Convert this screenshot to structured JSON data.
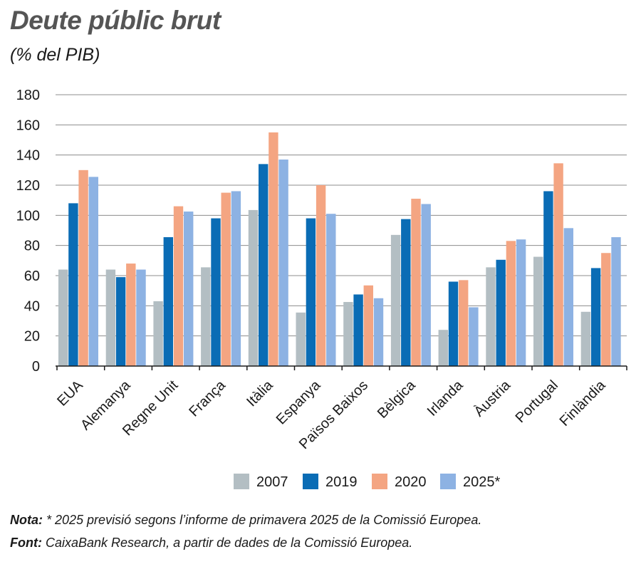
{
  "header": {
    "title": "Deute públic brut",
    "subtitle": "(% del PIB)"
  },
  "chart_data": {
    "type": "bar",
    "title": "Deute públic brut",
    "subtitle": "(% del PIB)",
    "xlabel": "",
    "ylabel": "",
    "ylim": [
      0,
      180
    ],
    "yticks": [
      0,
      20,
      40,
      60,
      80,
      100,
      120,
      140,
      160,
      180
    ],
    "grid": true,
    "legend_position": "bottom",
    "categories": [
      "EUA",
      "Alemanya",
      "Regne Unit",
      "França",
      "Itàlia",
      "Espanya",
      "Països Baixos",
      "Bèlgica",
      "Irlanda",
      "Àustria",
      "Portugal",
      "Finlàndia"
    ],
    "series": [
      {
        "name": "2007",
        "color": "#b3bec3",
        "values": [
          64,
          64,
          43,
          65.5,
          103.5,
          35.5,
          42.5,
          87,
          24,
          65.5,
          72.5,
          36
        ]
      },
      {
        "name": "2019",
        "color": "#0a6cb5",
        "values": [
          108,
          59,
          85.5,
          98,
          134,
          98,
          47.5,
          97.5,
          56,
          70.5,
          116,
          65
        ]
      },
      {
        "name": "2020",
        "color": "#f4a582",
        "values": [
          130,
          68,
          106,
          115,
          155,
          120,
          53.5,
          111,
          57,
          83,
          134.5,
          75
        ]
      },
      {
        "name": "2025*",
        "color": "#8db2e3",
        "values": [
          125.5,
          64,
          102.5,
          116,
          137,
          101,
          45,
          107.5,
          39,
          84,
          91.5,
          85.5
        ]
      }
    ]
  },
  "notes": {
    "note_label": "Nota:",
    "note_text": " * 2025 previsió segons l’informe de primavera 2025 de la Comissió Europea.",
    "source_label": "Font:",
    "source_text": " CaixaBank Research, a partir de dades de la Comissió Europea."
  }
}
